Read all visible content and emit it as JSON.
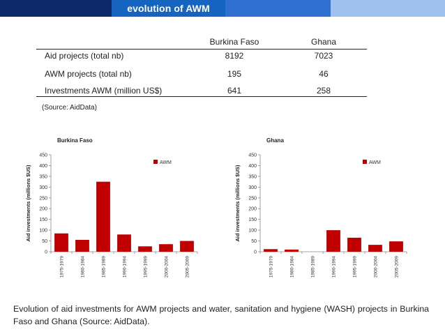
{
  "slide": {
    "title": "evolution of AWM"
  },
  "table": {
    "headers": [
      "",
      "Burkina Faso",
      "Ghana"
    ],
    "rows": [
      [
        "Aid projects (total nb)",
        "8192",
        "7023"
      ],
      [
        "AWM projects (total nb)",
        "195",
        "46"
      ],
      [
        "Investments AWM (million US$)",
        "641",
        "258"
      ]
    ],
    "source": "(Source: AidData)"
  },
  "chart_data": [
    {
      "type": "bar",
      "title": "Burkina Faso",
      "ylabel": "Aid investments (millions $US)",
      "xlabel": "",
      "categories": [
        "1975-1979",
        "1980-1984",
        "1985-1989",
        "1990-1994",
        "1995-1999",
        "2000-2004",
        "2005-2009"
      ],
      "series": [
        {
          "name": "AWM",
          "values": [
            85,
            55,
            325,
            80,
            25,
            35,
            50
          ]
        }
      ],
      "ylim": [
        0,
        450
      ],
      "yticks": [
        0,
        50,
        100,
        150,
        200,
        250,
        300,
        350,
        400,
        450
      ],
      "legend": "top-right",
      "color": "#c00000"
    },
    {
      "type": "bar",
      "title": "Ghana",
      "ylabel": "Aid investments (millions $US)",
      "xlabel": "",
      "categories": [
        "1975-1979",
        "1980-1984",
        "1985-1989",
        "1990-1994",
        "1995-1999",
        "2000-2004",
        "2005-2009"
      ],
      "series": [
        {
          "name": "AWM",
          "values": [
            12,
            10,
            0,
            100,
            65,
            32,
            48
          ]
        }
      ],
      "ylim": [
        0,
        450
      ],
      "yticks": [
        0,
        50,
        100,
        150,
        200,
        250,
        300,
        350,
        400,
        450
      ],
      "legend": "top-right",
      "color": "#c00000"
    }
  ],
  "caption": "Evolution of aid investments for AWM projects and water, sanitation and hygiene (WASH) projects in Burkina Faso and Ghana (Source: AidData)."
}
